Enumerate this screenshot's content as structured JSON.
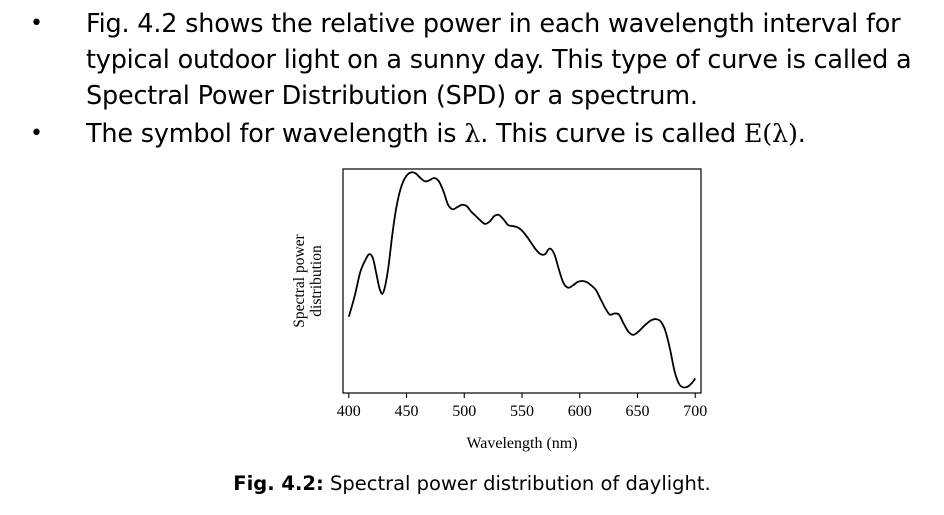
{
  "bullets": [
    {
      "marker": "•",
      "text": "Fig. 4.2 shows the relative power in each wavelength interval for typical outdoor light on a sunny day. This type of curve is called a Spectral Power Distribution (SPD) or a spectrum."
    },
    {
      "marker": "•",
      "prefix": "The symbol for wavelength is ",
      "symbol": "λ",
      "middle": ". This curve is called ",
      "func": "E(λ)",
      "suffix": "."
    }
  ],
  "caption": {
    "label": "Fig. 4.2:",
    "text": " Spectral power distribution of daylight."
  },
  "chart_data": {
    "type": "line",
    "title": "",
    "xlabel": "Wavelength (nm)",
    "ylabel_lines": [
      "Spectral power",
      "distribution"
    ],
    "xlim": [
      395,
      705
    ],
    "ylim": [
      0,
      1
    ],
    "xticks": [
      400,
      450,
      500,
      550,
      600,
      650,
      700
    ],
    "grid": false,
    "legend": "none",
    "line_color": "#000000",
    "series": [
      {
        "points": [
          [
            400,
            0.34
          ],
          [
            405,
            0.43
          ],
          [
            410,
            0.54
          ],
          [
            415,
            0.6
          ],
          [
            418,
            0.62
          ],
          [
            421,
            0.6
          ],
          [
            424,
            0.53
          ],
          [
            427,
            0.46
          ],
          [
            430,
            0.45
          ],
          [
            434,
            0.55
          ],
          [
            438,
            0.72
          ],
          [
            442,
            0.85
          ],
          [
            446,
            0.93
          ],
          [
            450,
            0.97
          ],
          [
            454,
            0.985
          ],
          [
            458,
            0.98
          ],
          [
            462,
            0.96
          ],
          [
            466,
            0.945
          ],
          [
            470,
            0.95
          ],
          [
            474,
            0.96
          ],
          [
            478,
            0.945
          ],
          [
            482,
            0.9
          ],
          [
            486,
            0.84
          ],
          [
            490,
            0.82
          ],
          [
            494,
            0.83
          ],
          [
            498,
            0.84
          ],
          [
            502,
            0.835
          ],
          [
            506,
            0.81
          ],
          [
            510,
            0.79
          ],
          [
            514,
            0.77
          ],
          [
            518,
            0.755
          ],
          [
            522,
            0.765
          ],
          [
            526,
            0.79
          ],
          [
            530,
            0.795
          ],
          [
            534,
            0.775
          ],
          [
            538,
            0.75
          ],
          [
            542,
            0.745
          ],
          [
            546,
            0.74
          ],
          [
            550,
            0.725
          ],
          [
            554,
            0.7
          ],
          [
            558,
            0.67
          ],
          [
            562,
            0.64
          ],
          [
            566,
            0.62
          ],
          [
            570,
            0.62
          ],
          [
            574,
            0.645
          ],
          [
            578,
            0.62
          ],
          [
            582,
            0.55
          ],
          [
            586,
            0.49
          ],
          [
            590,
            0.47
          ],
          [
            594,
            0.48
          ],
          [
            598,
            0.495
          ],
          [
            602,
            0.5
          ],
          [
            606,
            0.495
          ],
          [
            610,
            0.48
          ],
          [
            614,
            0.46
          ],
          [
            618,
            0.42
          ],
          [
            622,
            0.38
          ],
          [
            626,
            0.35
          ],
          [
            630,
            0.355
          ],
          [
            634,
            0.35
          ],
          [
            638,
            0.31
          ],
          [
            642,
            0.275
          ],
          [
            646,
            0.26
          ],
          [
            650,
            0.27
          ],
          [
            654,
            0.29
          ],
          [
            658,
            0.31
          ],
          [
            662,
            0.325
          ],
          [
            666,
            0.33
          ],
          [
            670,
            0.32
          ],
          [
            674,
            0.28
          ],
          [
            678,
            0.2
          ],
          [
            682,
            0.1
          ],
          [
            686,
            0.04
          ],
          [
            690,
            0.025
          ],
          [
            694,
            0.03
          ],
          [
            698,
            0.05
          ],
          [
            700,
            0.065
          ]
        ]
      }
    ]
  }
}
